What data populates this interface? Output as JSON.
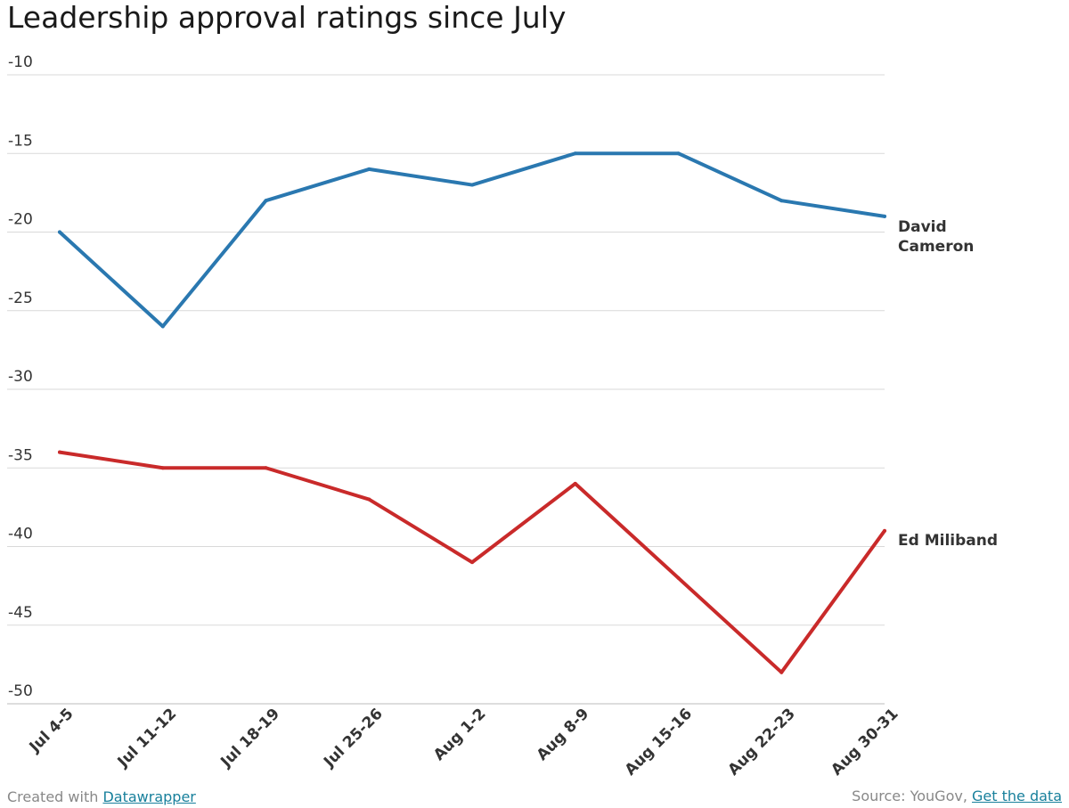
{
  "chart_data": {
    "type": "line",
    "title": "Leadership approval ratings since July",
    "categories": [
      "Jul 4-5",
      "Jul 11-12",
      "Jul 18-19",
      "Jul 25-26",
      "Aug 1-2",
      "Aug 8-9",
      "Aug 15-16",
      "Aug 22-23",
      "Aug 30-31"
    ],
    "series": [
      {
        "name": "David Cameron",
        "name_lines": [
          "David",
          "Cameron"
        ],
        "color": "#2a78b0",
        "values": [
          -20,
          -26,
          -18,
          -16,
          -17,
          -15,
          -15,
          -18,
          -19
        ]
      },
      {
        "name": "Ed Miliband",
        "name_lines": [
          "Ed Miliband"
        ],
        "color": "#c92a2a",
        "values": [
          -34,
          -35,
          -35,
          -37,
          -41,
          -36,
          -42,
          -48,
          -39
        ]
      }
    ],
    "yticks": [
      -10,
      -15,
      -20,
      -25,
      -30,
      -35,
      -40,
      -45,
      -50
    ],
    "ylim": [
      -50,
      -10
    ],
    "grid": true,
    "legend": "direct-labels-right"
  },
  "footer": {
    "created_prefix": "Created with",
    "created_link": "Datawrapper",
    "source_prefix": "Source: YouGov,",
    "source_link": "Get the data"
  }
}
